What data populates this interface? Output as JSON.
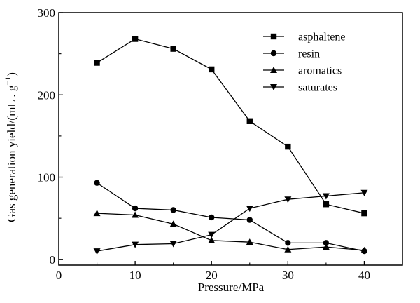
{
  "chart_data": {
    "type": "line",
    "title": "",
    "xlabel": "Pressure/MPa",
    "ylabel_main": "Gas generation yield/(mL . g",
    "ylabel_sup": "−1",
    "ylabel_end": ")",
    "x": [
      5,
      10,
      15,
      20,
      25,
      30,
      35,
      40
    ],
    "xlim": [
      0,
      45
    ],
    "ylim": [
      -7,
      300
    ],
    "xticks": [
      0,
      10,
      20,
      30,
      40
    ],
    "yticks": [
      0,
      100,
      200,
      300
    ],
    "xtick_labels": [
      "0",
      "10",
      "20",
      "30",
      "40"
    ],
    "ytick_labels": [
      "0",
      "100",
      "200",
      "300"
    ],
    "legend_position": "top-right",
    "series": [
      {
        "name": "asphaltene",
        "marker": "square",
        "values": [
          239,
          268,
          256,
          231,
          168,
          137,
          67,
          56
        ]
      },
      {
        "name": "resin",
        "marker": "circle",
        "values": [
          93,
          62,
          60,
          51,
          48,
          20,
          20,
          10
        ]
      },
      {
        "name": "aromatics",
        "marker": "triangle-up",
        "values": [
          56,
          54,
          43,
          23,
          21,
          12,
          15,
          11
        ]
      },
      {
        "name": "saturates",
        "marker": "triangle-down",
        "values": [
          10,
          18,
          19,
          30,
          62,
          73,
          77,
          81
        ]
      }
    ]
  }
}
